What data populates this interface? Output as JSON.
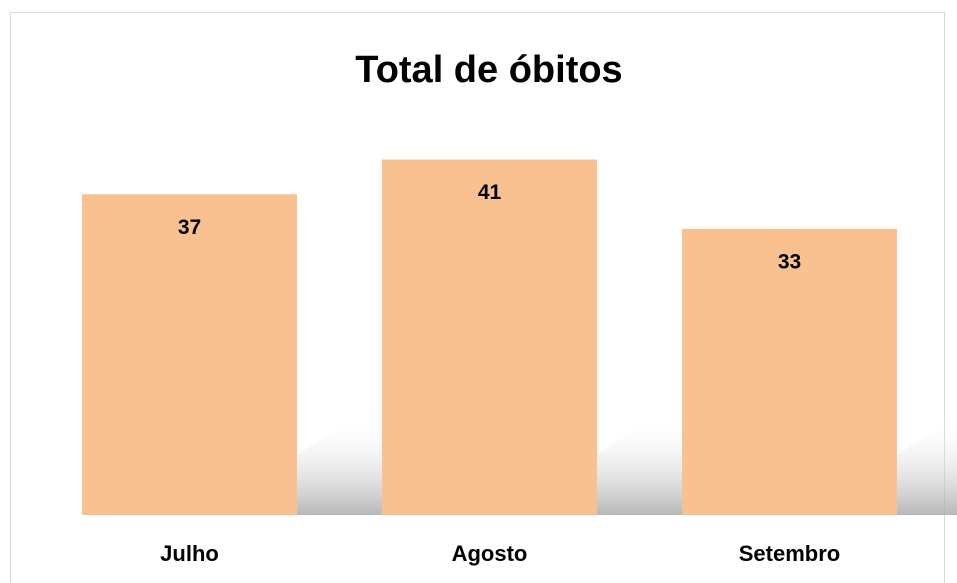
{
  "chart_data": {
    "type": "bar",
    "title": "Total de óbitos",
    "categories": [
      "Julho",
      "Agosto",
      "Setembro"
    ],
    "values": [
      37,
      41,
      33
    ],
    "color": "#f9c18f"
  }
}
